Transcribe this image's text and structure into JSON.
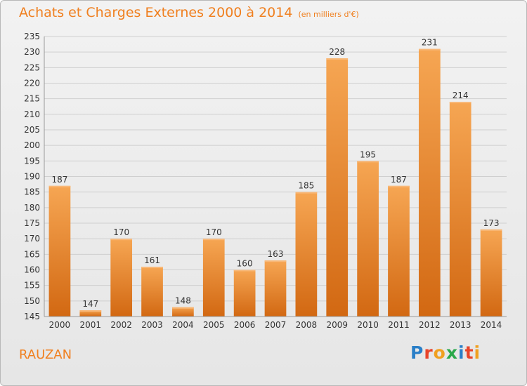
{
  "header": {
    "title": "Achats et Charges Externes 2000 à 2014",
    "unit": "(en milliers d'€)"
  },
  "footer": {
    "place": "RAUZAN",
    "logo": "Proxiti"
  },
  "colors": {
    "accent": "#f08020",
    "bar_light": "#f5a04c",
    "bar_dark": "#d46a14"
  },
  "chart_data": {
    "type": "bar",
    "categories": [
      "2000",
      "2001",
      "2002",
      "2003",
      "2004",
      "2005",
      "2006",
      "2007",
      "2008",
      "2009",
      "2010",
      "2011",
      "2012",
      "2013",
      "2014"
    ],
    "values": [
      187,
      147,
      170,
      161,
      148,
      170,
      160,
      163,
      185,
      228,
      195,
      187,
      231,
      214,
      173
    ],
    "ylim": [
      145,
      235
    ],
    "yticks": [
      145,
      150,
      155,
      160,
      165,
      170,
      175,
      180,
      185,
      190,
      195,
      200,
      205,
      210,
      215,
      220,
      225,
      230,
      235
    ],
    "grid": true,
    "data_labels": true
  }
}
